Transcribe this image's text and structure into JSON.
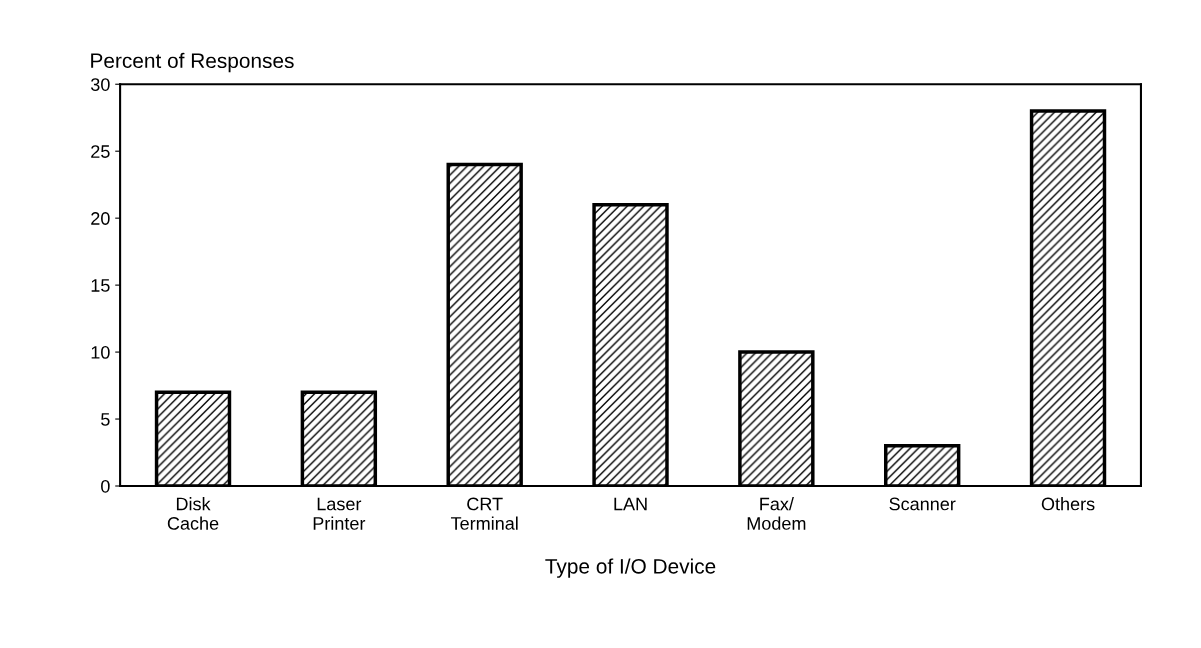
{
  "chart_data": {
    "type": "bar",
    "categories": [
      "Disk\nCache",
      "Laser\nPrinter",
      "CRT\nTerminal",
      "LAN",
      "Fax/\nModem",
      "Scanner",
      "Others"
    ],
    "values": [
      7,
      7,
      24,
      21,
      10,
      3,
      28
    ],
    "color": "#000000",
    "xlabel": "Type of I/O Device",
    "ylabel": "Percent of Responses",
    "ylim": [
      0,
      30
    ],
    "yticks": [
      0,
      5,
      10,
      15,
      20,
      25,
      30
    ],
    "grid": false,
    "legend": false
  }
}
